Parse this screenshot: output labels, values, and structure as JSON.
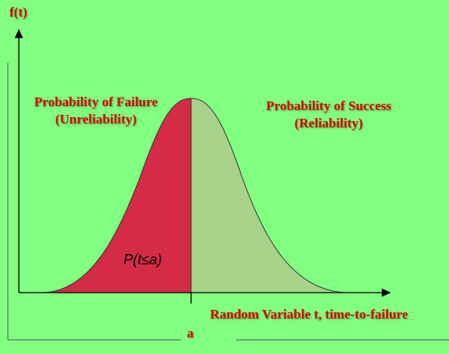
{
  "y_axis_label": "f(t)",
  "left_region": {
    "title": "Probability of Failure",
    "subtitle": "(Unreliability)",
    "area_label": "P(t≤a)"
  },
  "right_region": {
    "title": "Probability of Success",
    "subtitle": "(Reliability)"
  },
  "x_axis_label": "Random Variable t, time-to-failure",
  "x_marker": "a"
}
